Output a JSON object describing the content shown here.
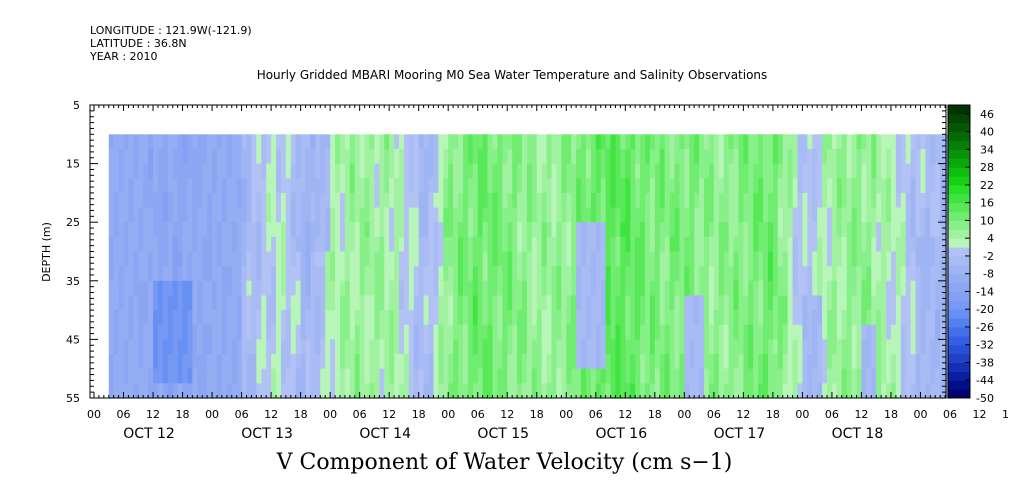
{
  "meta": {
    "longitude": "LONGITUDE : 121.9W(-121.9)",
    "latitude": "LATITUDE : 36.8N",
    "year": "YEAR : 2010"
  },
  "title": "Hourly Gridded MBARI Mooring M0 Sea Water Temperature and Salinity Observations",
  "footer": "V Component of Water Velocity (cm s−1)",
  "chart_data": {
    "type": "heatmap",
    "ylabel": "DEPTH (m)",
    "y_ticks": [
      "5",
      "15",
      "25",
      "35",
      "45",
      "55"
    ],
    "y_range": [
      5,
      55
    ],
    "y_inverted": true,
    "data_depth_range": [
      10,
      55
    ],
    "x_hour_ticks": [
      "00",
      "06",
      "12",
      "18",
      "00",
      "06",
      "12",
      "18",
      "00",
      "06",
      "12",
      "18",
      "00",
      "06",
      "12",
      "18",
      "00",
      "06",
      "12",
      "18",
      "00",
      "06",
      "12",
      "18",
      "00",
      "06",
      "12",
      "18",
      "00",
      "06",
      "12",
      "18"
    ],
    "x_day_labels": [
      "OCT 12",
      "OCT 13",
      "OCT 14",
      "OCT 15",
      "OCT 16",
      "OCT 17",
      "OCT 18"
    ],
    "x_range_hours": [
      0,
      174
    ],
    "data_start_hour": 3,
    "colorbar": {
      "labels": [
        "46",
        "40",
        "34",
        "28",
        "22",
        "16",
        "10",
        "4",
        "-2",
        "-8",
        "-14",
        "-20",
        "-26",
        "-32",
        "-38",
        "-44",
        "-50"
      ],
      "levels": [
        -50,
        -47,
        -44,
        -41,
        -38,
        -35,
        -32,
        -29,
        -26,
        -23,
        -20,
        -17,
        -14,
        -11,
        -8,
        -5,
        -2,
        1,
        4,
        7,
        10,
        13,
        16,
        19,
        22,
        25,
        28,
        31,
        34,
        37,
        40,
        43,
        46,
        49
      ],
      "colors": [
        "#000070",
        "#001088",
        "#0a1fa0",
        "#1530b5",
        "#2040c8",
        "#2a50d8",
        "#3560e5",
        "#4470ec",
        "#5580f0",
        "#6690f3",
        "#7799f4",
        "#83a0f5",
        "#8ca6f4",
        "#95adf3",
        "#9fb4f3",
        "#a9bbf4",
        "#b3c2f5",
        "#b8f5b8",
        "#a0f2a0",
        "#88f088",
        "#70ec70",
        "#58e858",
        "#40e440",
        "#28e028",
        "#16d016",
        "#0ebd0e",
        "#0aa80a",
        "#089408",
        "#067f06",
        "#056b05",
        "#045804",
        "#034603",
        "#023402"
      ]
    },
    "time_profile": [
      {
        "t": 3,
        "v": -3
      },
      {
        "t": 10,
        "v": -9
      },
      {
        "t": 18,
        "v": -12
      },
      {
        "t": 24,
        "v": -8
      },
      {
        "t": 30,
        "v": -5
      },
      {
        "t": 38,
        "v": 2
      },
      {
        "t": 44,
        "v": -6
      },
      {
        "t": 48,
        "v": 3
      },
      {
        "t": 54,
        "v": 6
      },
      {
        "t": 60,
        "v": 5
      },
      {
        "t": 68,
        "v": -4
      },
      {
        "t": 72,
        "v": 8
      },
      {
        "t": 78,
        "v": 12
      },
      {
        "t": 84,
        "v": 10
      },
      {
        "t": 90,
        "v": 6
      },
      {
        "t": 96,
        "v": 7
      },
      {
        "t": 102,
        "v": 13
      },
      {
        "t": 108,
        "v": 14
      },
      {
        "t": 114,
        "v": 9
      },
      {
        "t": 120,
        "v": 10
      },
      {
        "t": 126,
        "v": 7
      },
      {
        "t": 132,
        "v": 9
      },
      {
        "t": 138,
        "v": 12
      },
      {
        "t": 144,
        "v": -2
      },
      {
        "t": 150,
        "v": 5
      },
      {
        "t": 156,
        "v": 8
      },
      {
        "t": 162,
        "v": 3
      },
      {
        "t": 168,
        "v": -3
      },
      {
        "t": 174,
        "v": -4
      }
    ],
    "negative_patches": [
      {
        "t0": 3,
        "t1": 30,
        "d0": 10,
        "d1": 55,
        "v": -10
      },
      {
        "t0": 12,
        "t1": 20,
        "d0": 35,
        "d1": 52,
        "v": -20
      },
      {
        "t0": 41,
        "t1": 48,
        "d0": 10,
        "d1": 30,
        "v": -5
      },
      {
        "t0": 66,
        "t1": 70,
        "d0": 10,
        "d1": 20,
        "v": -4
      },
      {
        "t0": 98,
        "t1": 104,
        "d0": 25,
        "d1": 50,
        "v": -4
      },
      {
        "t0": 120,
        "t1": 124,
        "d0": 38,
        "d1": 55,
        "v": -4
      },
      {
        "t0": 144,
        "t1": 148,
        "d0": 38,
        "d1": 55,
        "v": -5
      },
      {
        "t0": 156,
        "t1": 159,
        "d0": 42,
        "d1": 55,
        "v": -6
      },
      {
        "t0": 167,
        "t1": 174,
        "d0": 28,
        "d1": 55,
        "v": -4
      }
    ]
  }
}
